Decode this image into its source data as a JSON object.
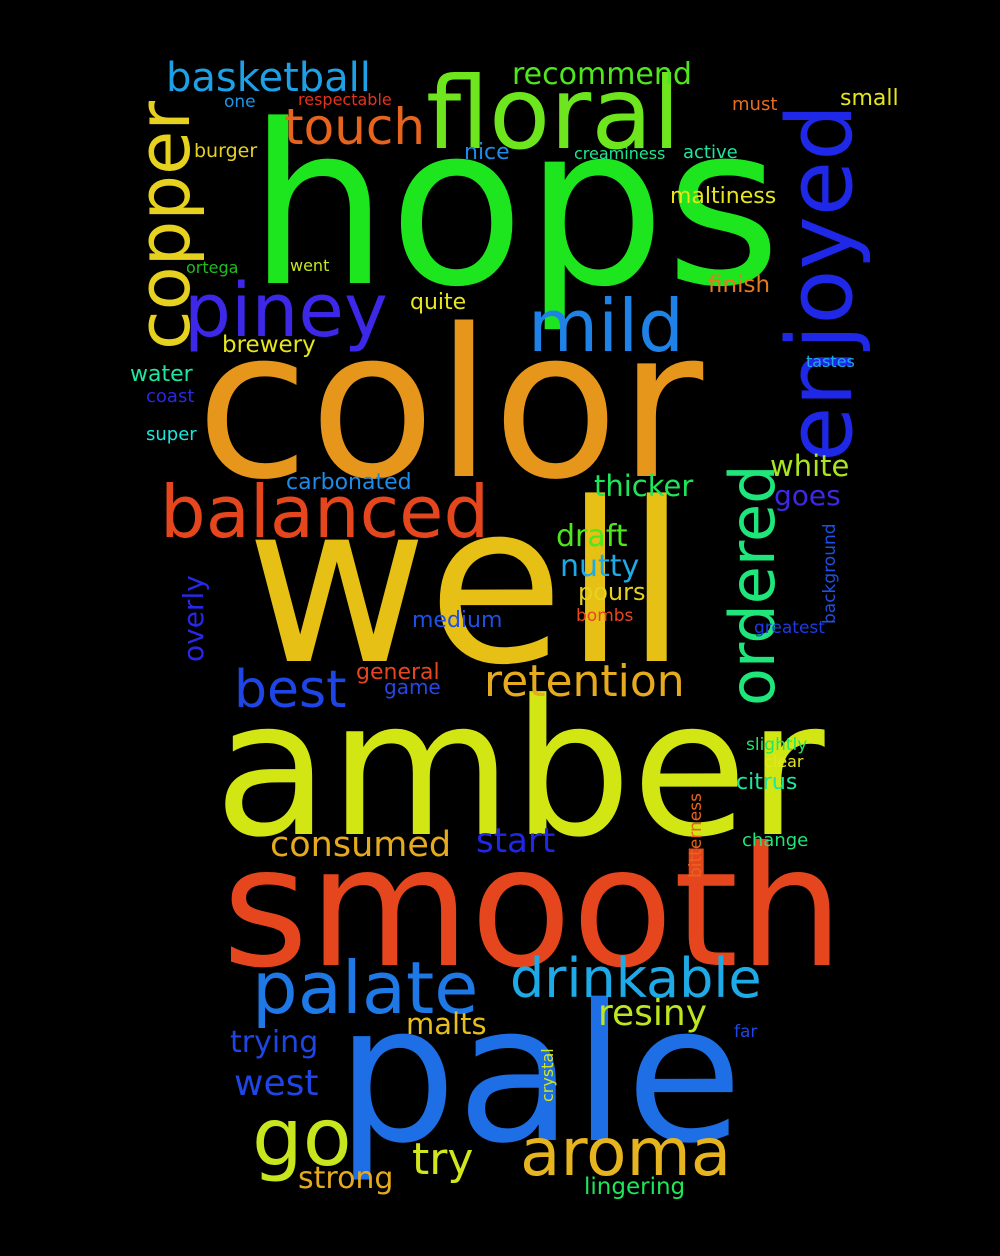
{
  "background": "#000000",
  "words": [
    {
      "text": "hops",
      "color": "#1ee61e"
    },
    {
      "text": "color",
      "color": "#e6961a"
    },
    {
      "text": "well",
      "color": "#e6c014"
    },
    {
      "text": "amber",
      "color": "#d2e614"
    },
    {
      "text": "smooth",
      "color": "#e6461e"
    },
    {
      "text": "pale",
      "color": "#1e6ee6"
    },
    {
      "text": "floral",
      "color": "#6ee61e"
    },
    {
      "text": "enjoyed",
      "color": "#1e28e6"
    },
    {
      "text": "copper",
      "color": "#e6d21e"
    },
    {
      "text": "piney",
      "color": "#3c28e6"
    },
    {
      "text": "mild",
      "color": "#1e82e6"
    },
    {
      "text": "balanced",
      "color": "#e6461e"
    },
    {
      "text": "ordered",
      "color": "#1ee67a"
    },
    {
      "text": "palate",
      "color": "#1e78e6"
    },
    {
      "text": "drinkable",
      "color": "#1eaae6"
    },
    {
      "text": "aroma",
      "color": "#e6b41e"
    },
    {
      "text": "go",
      "color": "#c8e61e"
    },
    {
      "text": "retention",
      "color": "#e6aa1e"
    },
    {
      "text": "best",
      "color": "#1e46e6"
    },
    {
      "text": "touch",
      "color": "#e6641e"
    },
    {
      "text": "basketball",
      "color": "#1ea0e6"
    },
    {
      "text": "recommend",
      "color": "#50e61e"
    },
    {
      "text": "small",
      "color": "#e6e61e"
    },
    {
      "text": "must",
      "color": "#e66e1e"
    },
    {
      "text": "one",
      "color": "#1e96e6"
    },
    {
      "text": "respectable",
      "color": "#e6321e"
    },
    {
      "text": "burger",
      "color": "#e6d21e"
    },
    {
      "text": "nice",
      "color": "#1e8ce6"
    },
    {
      "text": "creaminess",
      "color": "#1ee68c"
    },
    {
      "text": "active",
      "color": "#1ee6a0"
    },
    {
      "text": "maltiness",
      "color": "#e6e61e"
    },
    {
      "text": "ortega",
      "color": "#1ebe1e"
    },
    {
      "text": "went",
      "color": "#c8e61e"
    },
    {
      "text": "quite",
      "color": "#e6e61e"
    },
    {
      "text": "finish",
      "color": "#e6781e"
    },
    {
      "text": "brewery",
      "color": "#e6e61e"
    },
    {
      "text": "tastes",
      "color": "#1eaae6"
    },
    {
      "text": "water",
      "color": "#1ee6a0"
    },
    {
      "text": "coast",
      "color": "#2828e6"
    },
    {
      "text": "super",
      "color": "#1ee6dc"
    },
    {
      "text": "white",
      "color": "#aae61e"
    },
    {
      "text": "thicker",
      "color": "#1ee65a"
    },
    {
      "text": "carbonated",
      "color": "#1e8ce6"
    },
    {
      "text": "goes",
      "color": "#3c28e6"
    },
    {
      "text": "background",
      "color": "#1e50e6"
    },
    {
      "text": "draft",
      "color": "#50e61e"
    },
    {
      "text": "nutty",
      "color": "#1eaae6"
    },
    {
      "text": "overly",
      "color": "#2828e6"
    },
    {
      "text": "pours",
      "color": "#e6d21e"
    },
    {
      "text": "medium",
      "color": "#1e50e6"
    },
    {
      "text": "bombs",
      "color": "#e6461e"
    },
    {
      "text": "greatest",
      "color": "#1e3ce6"
    },
    {
      "text": "general",
      "color": "#e6461e"
    },
    {
      "text": "game",
      "color": "#2846e6"
    },
    {
      "text": "slightly",
      "color": "#1ee664"
    },
    {
      "text": "clear",
      "color": "#e6e61e"
    },
    {
      "text": "bitterness",
      "color": "#e6641e"
    },
    {
      "text": "citrus",
      "color": "#1ee6a0"
    },
    {
      "text": "consumed",
      "color": "#e6aa1e"
    },
    {
      "text": "start",
      "color": "#1e28e6"
    },
    {
      "text": "change",
      "color": "#1ee678"
    },
    {
      "text": "resiny",
      "color": "#bee61e"
    },
    {
      "text": "malts",
      "color": "#e6be1e"
    },
    {
      "text": "trying",
      "color": "#1e46e6"
    },
    {
      "text": "far",
      "color": "#1e46e6"
    },
    {
      "text": "crystal",
      "color": "#d2e61e"
    },
    {
      "text": "west",
      "color": "#1e46e6"
    },
    {
      "text": "try",
      "color": "#d2e61e"
    },
    {
      "text": "strong",
      "color": "#e6aa1e"
    },
    {
      "text": "lingering",
      "color": "#1ee65a"
    }
  ]
}
